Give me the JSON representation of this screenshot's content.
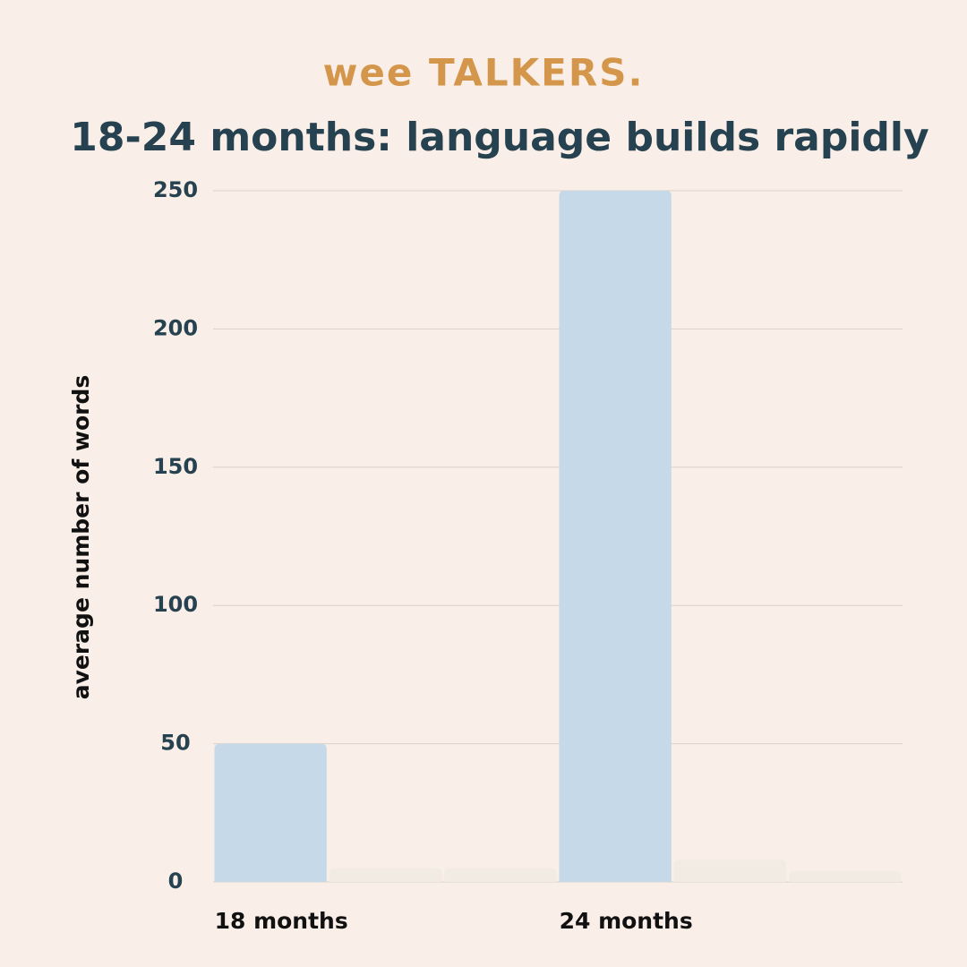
{
  "brand": "wee TALKERS.",
  "chart_data": {
    "type": "bar",
    "title": "18-24 months: language builds rapidly",
    "y_label": "average number of words",
    "categories": [
      "18 months",
      null,
      null,
      "24 months",
      null,
      null
    ],
    "values": [
      50,
      5,
      5,
      250,
      8,
      4
    ],
    "colors": [
      "#c5d9e8",
      "#f2ebe3",
      "#f2ebe3",
      "#c5d9e8",
      "#f2ebe3",
      "#f2ebe3"
    ],
    "ylim": [
      0,
      250
    ],
    "yticks": [
      0,
      50,
      100,
      150,
      200,
      250
    ],
    "grid": true
  }
}
